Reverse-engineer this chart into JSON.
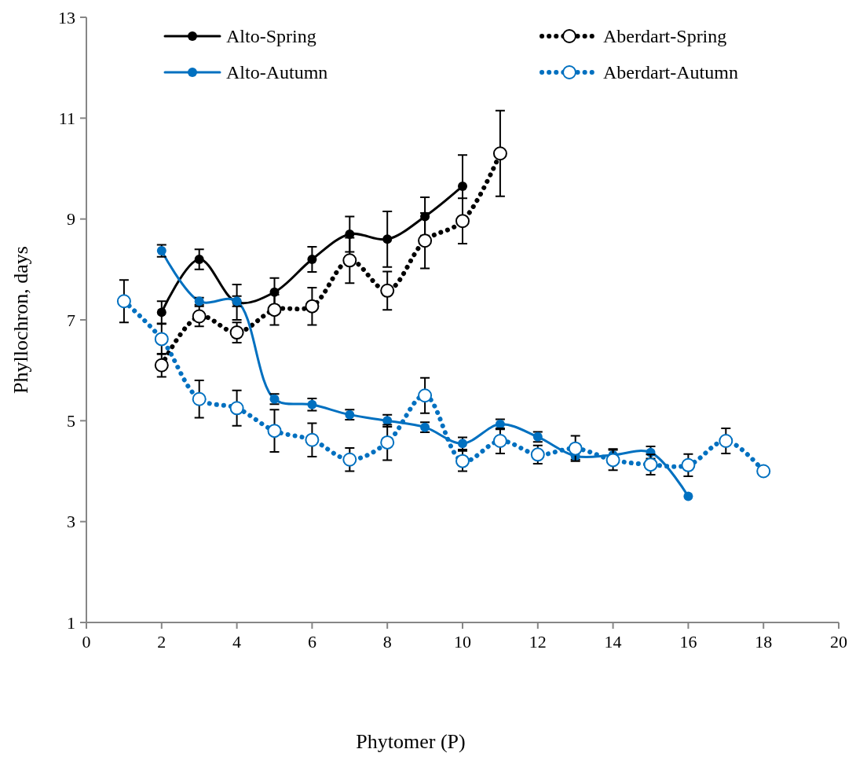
{
  "chart_data": {
    "type": "line",
    "xlabel": "Phytomer (P)",
    "ylabel": "Phyllochron, days",
    "xlim": [
      0,
      20
    ],
    "xticks": [
      0,
      2,
      4,
      6,
      8,
      10,
      12,
      14,
      16,
      18,
      20
    ],
    "ylim": [
      1,
      13
    ],
    "yticks": [
      1,
      3,
      5,
      7,
      9,
      11,
      13
    ],
    "grid": false,
    "legend": "top",
    "marker": "circle",
    "series": [
      {
        "name": "Alto-Spring",
        "color": "#000000",
        "line_style": "solid",
        "x": [
          2,
          3,
          4,
          5,
          6,
          7,
          8,
          9,
          10
        ],
        "values": [
          7.15,
          8.2,
          7.35,
          7.55,
          8.2,
          8.7,
          8.6,
          9.05,
          9.65
        ],
        "errors": [
          0.22,
          0.2,
          0.35,
          0.28,
          0.25,
          0.35,
          0.55,
          0.38,
          0.62
        ]
      },
      {
        "name": "Aberdart-Spring",
        "color": "#000000",
        "line_style": "dotted",
        "x": [
          2,
          3,
          4,
          5,
          6,
          7,
          8,
          9,
          10,
          11
        ],
        "values": [
          6.1,
          7.07,
          6.75,
          7.2,
          7.27,
          8.18,
          7.58,
          8.57,
          8.96,
          10.3
        ],
        "errors": [
          0.23,
          0.2,
          0.2,
          0.3,
          0.37,
          0.45,
          0.38,
          0.55,
          0.45,
          0.85
        ]
      },
      {
        "name": "Alto-Autumn",
        "color": "#0070c0",
        "line_style": "solid",
        "x": [
          2,
          3,
          4,
          5,
          6,
          7,
          8,
          9,
          10,
          11,
          12,
          13,
          14,
          15,
          16
        ],
        "values": [
          8.37,
          7.37,
          7.37,
          5.43,
          5.32,
          5.12,
          5.0,
          4.87,
          4.55,
          4.93,
          4.68,
          4.3,
          4.32,
          4.37,
          3.5
        ],
        "errors": [
          0.12,
          0.07,
          0.1,
          0.1,
          0.12,
          0.1,
          0.12,
          0.1,
          0.12,
          0.1,
          0.1,
          0.07,
          0.12,
          0.12,
          null
        ]
      },
      {
        "name": "Aberdart-Autumn",
        "color": "#0070c0",
        "line_style": "dotted",
        "x": [
          1,
          2,
          3,
          4,
          5,
          6,
          7,
          8,
          9,
          10,
          11,
          12,
          13,
          14,
          15,
          16,
          17,
          18
        ],
        "values": [
          7.37,
          6.62,
          5.43,
          5.25,
          4.8,
          4.62,
          4.23,
          4.57,
          5.5,
          4.2,
          4.6,
          4.33,
          4.45,
          4.22,
          4.13,
          4.12,
          4.6,
          4.0
        ],
        "errors": [
          0.42,
          0.3,
          0.37,
          0.35,
          0.42,
          0.33,
          0.23,
          0.35,
          0.35,
          0.2,
          0.25,
          0.18,
          0.25,
          0.2,
          0.2,
          0.22,
          0.25,
          null
        ]
      }
    ]
  }
}
